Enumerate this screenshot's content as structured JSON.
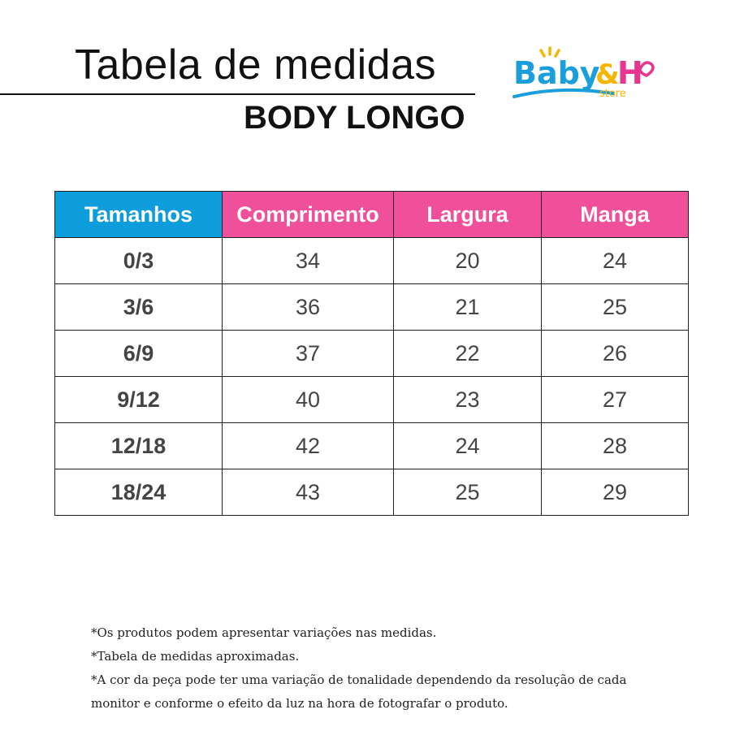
{
  "header": {
    "title": "Tabela de medidas",
    "subtitle": "BODY LONGO",
    "logo": {
      "text_main": "Baby",
      "text_amp": "&",
      "text_h": "H",
      "text_store": "store",
      "colors": {
        "blue": "#1a9fdc",
        "yellow": "#f7b500",
        "pink": "#e8358e"
      }
    }
  },
  "table": {
    "columns": [
      "Tamanhos",
      "Comprimento",
      "Largura",
      "Manga"
    ],
    "header_colors": {
      "sizes": "#0e9ddc",
      "measures": "#f0509a"
    },
    "rows": [
      [
        "0/3",
        "34",
        "20",
        "24"
      ],
      [
        "3/6",
        "36",
        "21",
        "25"
      ],
      [
        "6/9",
        "37",
        "22",
        "26"
      ],
      [
        "9/12",
        "40",
        "23",
        "27"
      ],
      [
        "12/18",
        "42",
        "24",
        "28"
      ],
      [
        "18/24",
        "43",
        "25",
        "29"
      ]
    ]
  },
  "notes": [
    "*Os produtos podem apresentar variações nas medidas.",
    "*Tabela de medidas aproximadas.",
    "*A cor da peça pode ter uma variação de tonalidade dependendo da resolução de cada",
    "monitor e conforme o efeito da luz na hora de fotografar o produto."
  ]
}
